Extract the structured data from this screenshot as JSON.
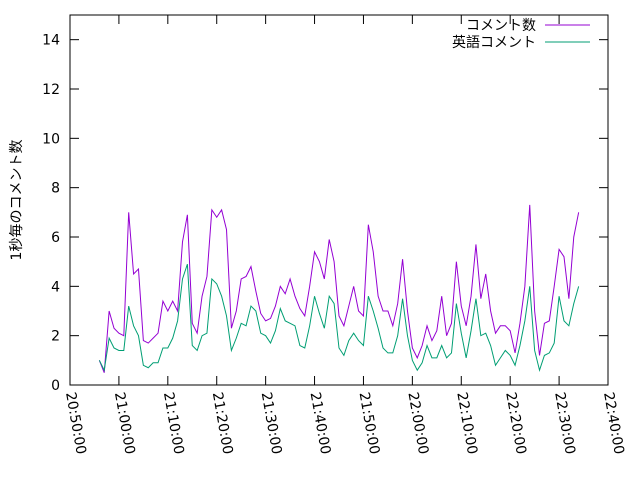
{
  "chart_data": {
    "type": "line",
    "y_label": "1秒毎のコメント数",
    "x": [
      "20:56:00",
      "20:57:00",
      "20:58:00",
      "20:59:00",
      "21:00:00",
      "21:01:00",
      "21:02:00",
      "21:03:00",
      "21:04:00",
      "21:05:00",
      "21:06:00",
      "21:07:00",
      "21:08:00",
      "21:09:00",
      "21:10:00",
      "21:11:00",
      "21:12:00",
      "21:13:00",
      "21:14:00",
      "21:15:00",
      "21:16:00",
      "21:17:00",
      "21:18:00",
      "21:19:00",
      "21:20:00",
      "21:21:00",
      "21:22:00",
      "21:23:00",
      "21:24:00",
      "21:25:00",
      "21:26:00",
      "21:27:00",
      "21:28:00",
      "21:29:00",
      "21:30:00",
      "21:31:00",
      "21:32:00",
      "21:33:00",
      "21:34:00",
      "21:35:00",
      "21:36:00",
      "21:37:00",
      "21:38:00",
      "21:39:00",
      "21:40:00",
      "21:41:00",
      "21:42:00",
      "21:43:00",
      "21:44:00",
      "21:45:00",
      "21:46:00",
      "21:47:00",
      "21:48:00",
      "21:49:00",
      "21:50:00",
      "21:51:00",
      "21:52:00",
      "21:53:00",
      "21:54:00",
      "21:55:00",
      "21:56:00",
      "21:57:00",
      "21:58:00",
      "21:59:00",
      "22:00:00",
      "22:01:00",
      "22:02:00",
      "22:03:00",
      "22:04:00",
      "22:05:00",
      "22:06:00",
      "22:07:00",
      "22:08:00",
      "22:09:00",
      "22:10:00",
      "22:11:00",
      "22:12:00",
      "22:13:00",
      "22:14:00",
      "22:15:00",
      "22:16:00",
      "22:17:00",
      "22:18:00",
      "22:19:00",
      "22:20:00",
      "22:21:00",
      "22:22:00",
      "22:23:00",
      "22:24:00",
      "22:25:00",
      "22:26:00",
      "22:27:00",
      "22:28:00",
      "22:29:00",
      "22:30:00",
      "22:31:00",
      "22:32:00",
      "22:33:00",
      "22:34:00"
    ],
    "series": [
      {
        "name": "コメント数",
        "color": "#9400d3",
        "values": [
          1.0,
          0.5,
          3.0,
          2.3,
          2.1,
          2.0,
          7.0,
          4.5,
          4.7,
          1.8,
          1.7,
          1.9,
          2.1,
          3.4,
          3.0,
          3.4,
          3.0,
          5.8,
          6.9,
          2.5,
          2.1,
          3.6,
          4.4,
          7.1,
          6.8,
          7.1,
          6.3,
          2.3,
          3.0,
          4.3,
          4.4,
          4.8,
          3.8,
          2.9,
          2.6,
          2.7,
          3.2,
          4.0,
          3.7,
          4.3,
          3.6,
          3.1,
          2.8,
          4.0,
          5.4,
          5.0,
          4.3,
          5.9,
          5.0,
          2.8,
          2.4,
          3.2,
          4.0,
          3.0,
          2.8,
          6.5,
          5.4,
          3.6,
          3.0,
          3.0,
          2.4,
          3.3,
          5.1,
          3.0,
          1.5,
          1.1,
          1.6,
          2.4,
          1.8,
          2.2,
          3.6,
          2.0,
          2.5,
          5.0,
          3.2,
          2.4,
          3.6,
          5.7,
          3.5,
          4.5,
          3.0,
          2.1,
          2.4,
          2.4,
          2.2,
          1.3,
          2.5,
          4.0,
          7.3,
          3.0,
          1.2,
          2.5,
          2.6,
          4.0,
          5.5,
          5.2,
          3.5,
          6.0,
          7.0
        ]
      },
      {
        "name": "英語コメント",
        "color": "#009e73",
        "values": [
          1.0,
          0.6,
          1.9,
          1.5,
          1.4,
          1.4,
          3.2,
          2.4,
          2.0,
          0.8,
          0.7,
          0.9,
          0.9,
          1.5,
          1.5,
          1.9,
          2.6,
          4.3,
          4.9,
          1.6,
          1.4,
          2.0,
          2.1,
          4.3,
          4.1,
          3.6,
          2.8,
          1.4,
          1.9,
          2.5,
          2.4,
          3.2,
          3.0,
          2.1,
          2.0,
          1.7,
          2.2,
          3.1,
          2.6,
          2.5,
          2.4,
          1.6,
          1.5,
          2.4,
          3.6,
          2.9,
          2.3,
          3.6,
          3.3,
          1.5,
          1.2,
          1.8,
          2.1,
          1.8,
          1.6,
          3.6,
          3.0,
          2.3,
          1.5,
          1.3,
          1.3,
          2.0,
          3.5,
          2.0,
          1.0,
          0.6,
          0.9,
          1.6,
          1.1,
          1.1,
          1.6,
          1.1,
          1.3,
          3.3,
          2.1,
          1.1,
          2.2,
          3.5,
          2.0,
          2.1,
          1.6,
          0.8,
          1.1,
          1.4,
          1.2,
          0.8,
          1.6,
          2.6,
          4.0,
          1.4,
          0.6,
          1.2,
          1.3,
          1.7,
          3.6,
          2.6,
          2.4,
          3.3,
          4.0
        ]
      }
    ],
    "xlim": [
      "20:50:00",
      "22:40:00"
    ],
    "xticks": [
      "20:50:00",
      "21:00:00",
      "21:10:00",
      "21:20:00",
      "21:30:00",
      "21:40:00",
      "21:50:00",
      "22:00:00",
      "22:10:00",
      "22:20:00",
      "22:30:00",
      "22:40:00"
    ],
    "ylim": [
      0,
      15
    ],
    "yticks": [
      0,
      2,
      4,
      6,
      8,
      10,
      12,
      14
    ],
    "legend": "top-right"
  }
}
